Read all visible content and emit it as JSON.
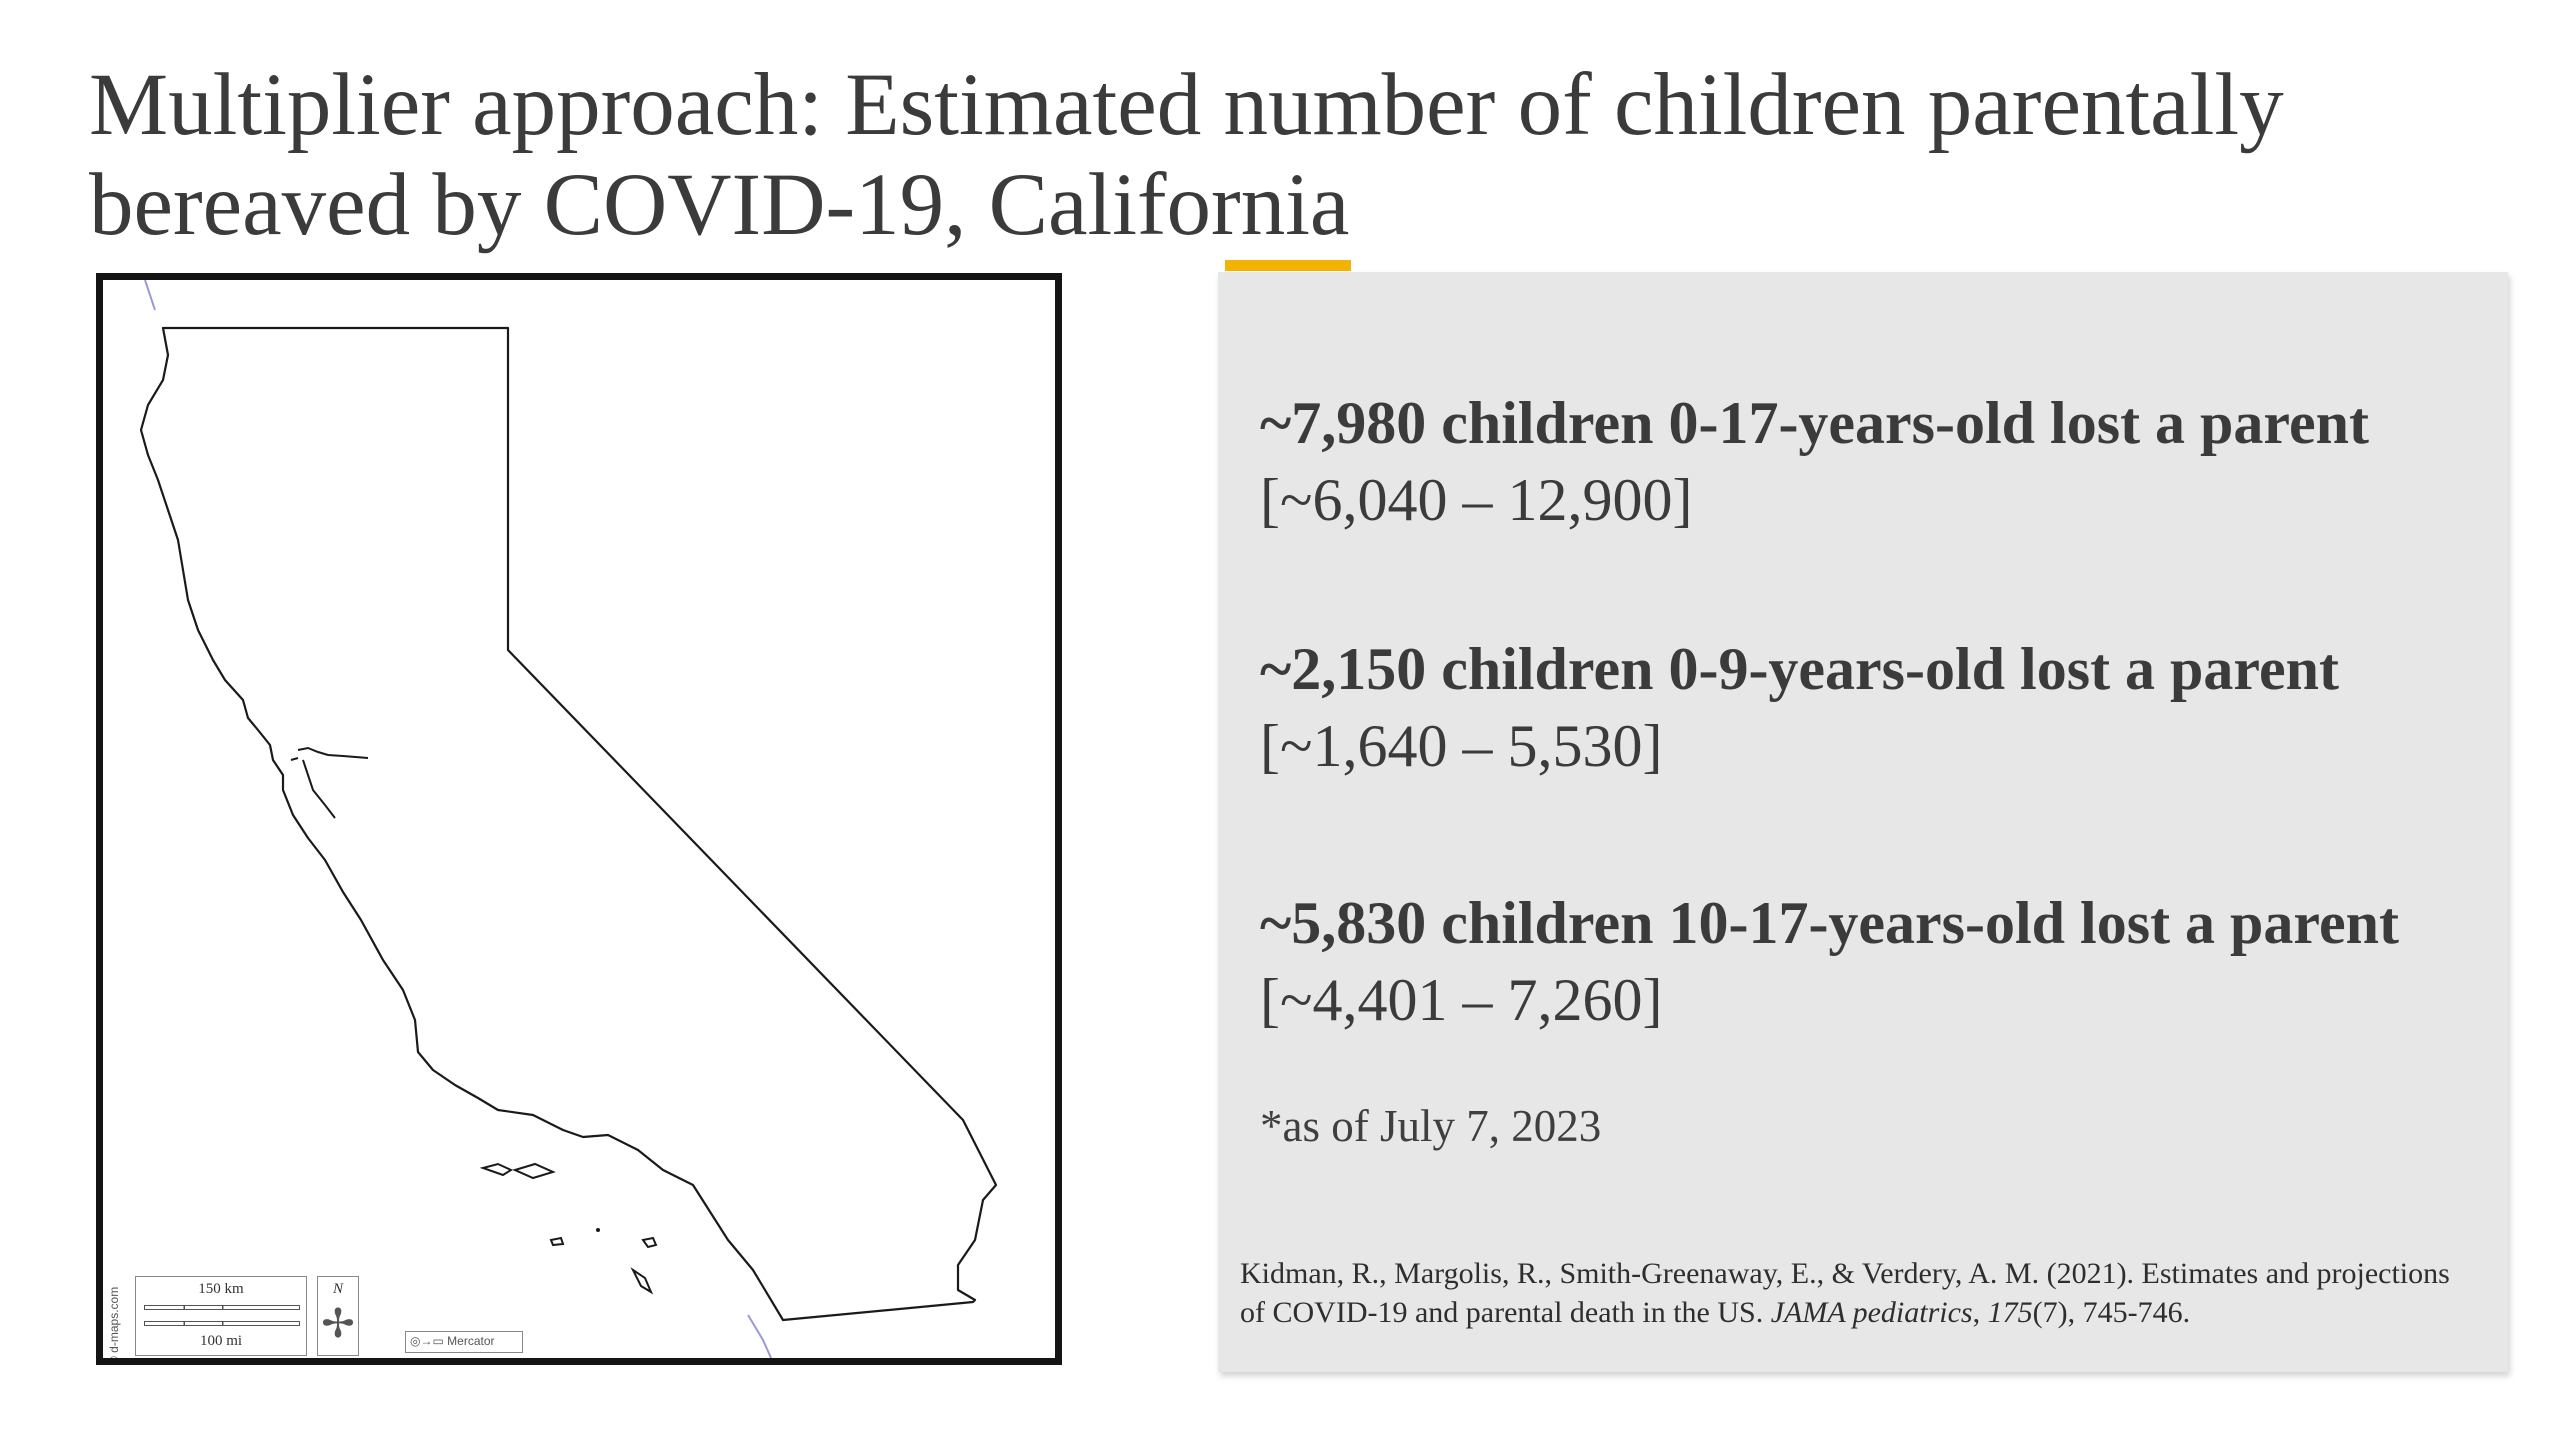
{
  "slide": {
    "title": "Multiplier approach: Estimated number of children parentally bereaved by COVID-19, California"
  },
  "colors": {
    "accent": "#f2b400",
    "panel_background": "#e7e7e7",
    "text": "#3b3b3b",
    "map_border": "#141414",
    "map_water_line": "#9a9ad6"
  },
  "map": {
    "credit": "© d-maps.com",
    "scale_km": "150 km",
    "scale_mi": "100 mi",
    "compass_label": "N",
    "compass_icon": "compass-rose-icon",
    "projection_label": "Mercator"
  },
  "stats": [
    {
      "headline": "~7,980 children 0-17-years-old lost a parent",
      "range": "[~6,040 – 12,900]"
    },
    {
      "headline": "~2,150 children 0-9-years-old lost a parent",
      "range": "[~1,640 – 5,530]"
    },
    {
      "headline": "~5,830 children 10-17-years-old lost a parent",
      "range": "[~4,401 – 7,260]"
    }
  ],
  "as_of": "*as of July 7, 2023",
  "citation": {
    "authors": "Kidman, R., Margolis, R., Smith-Greenaway, E., & Verdery, A. M. (2021). Estimates and projections of COVID-19 and parental death in the US. ",
    "journal": "JAMA pediatrics",
    "sep1": ", ",
    "volume": "175",
    "issue_pages": "(7), 745-746."
  }
}
